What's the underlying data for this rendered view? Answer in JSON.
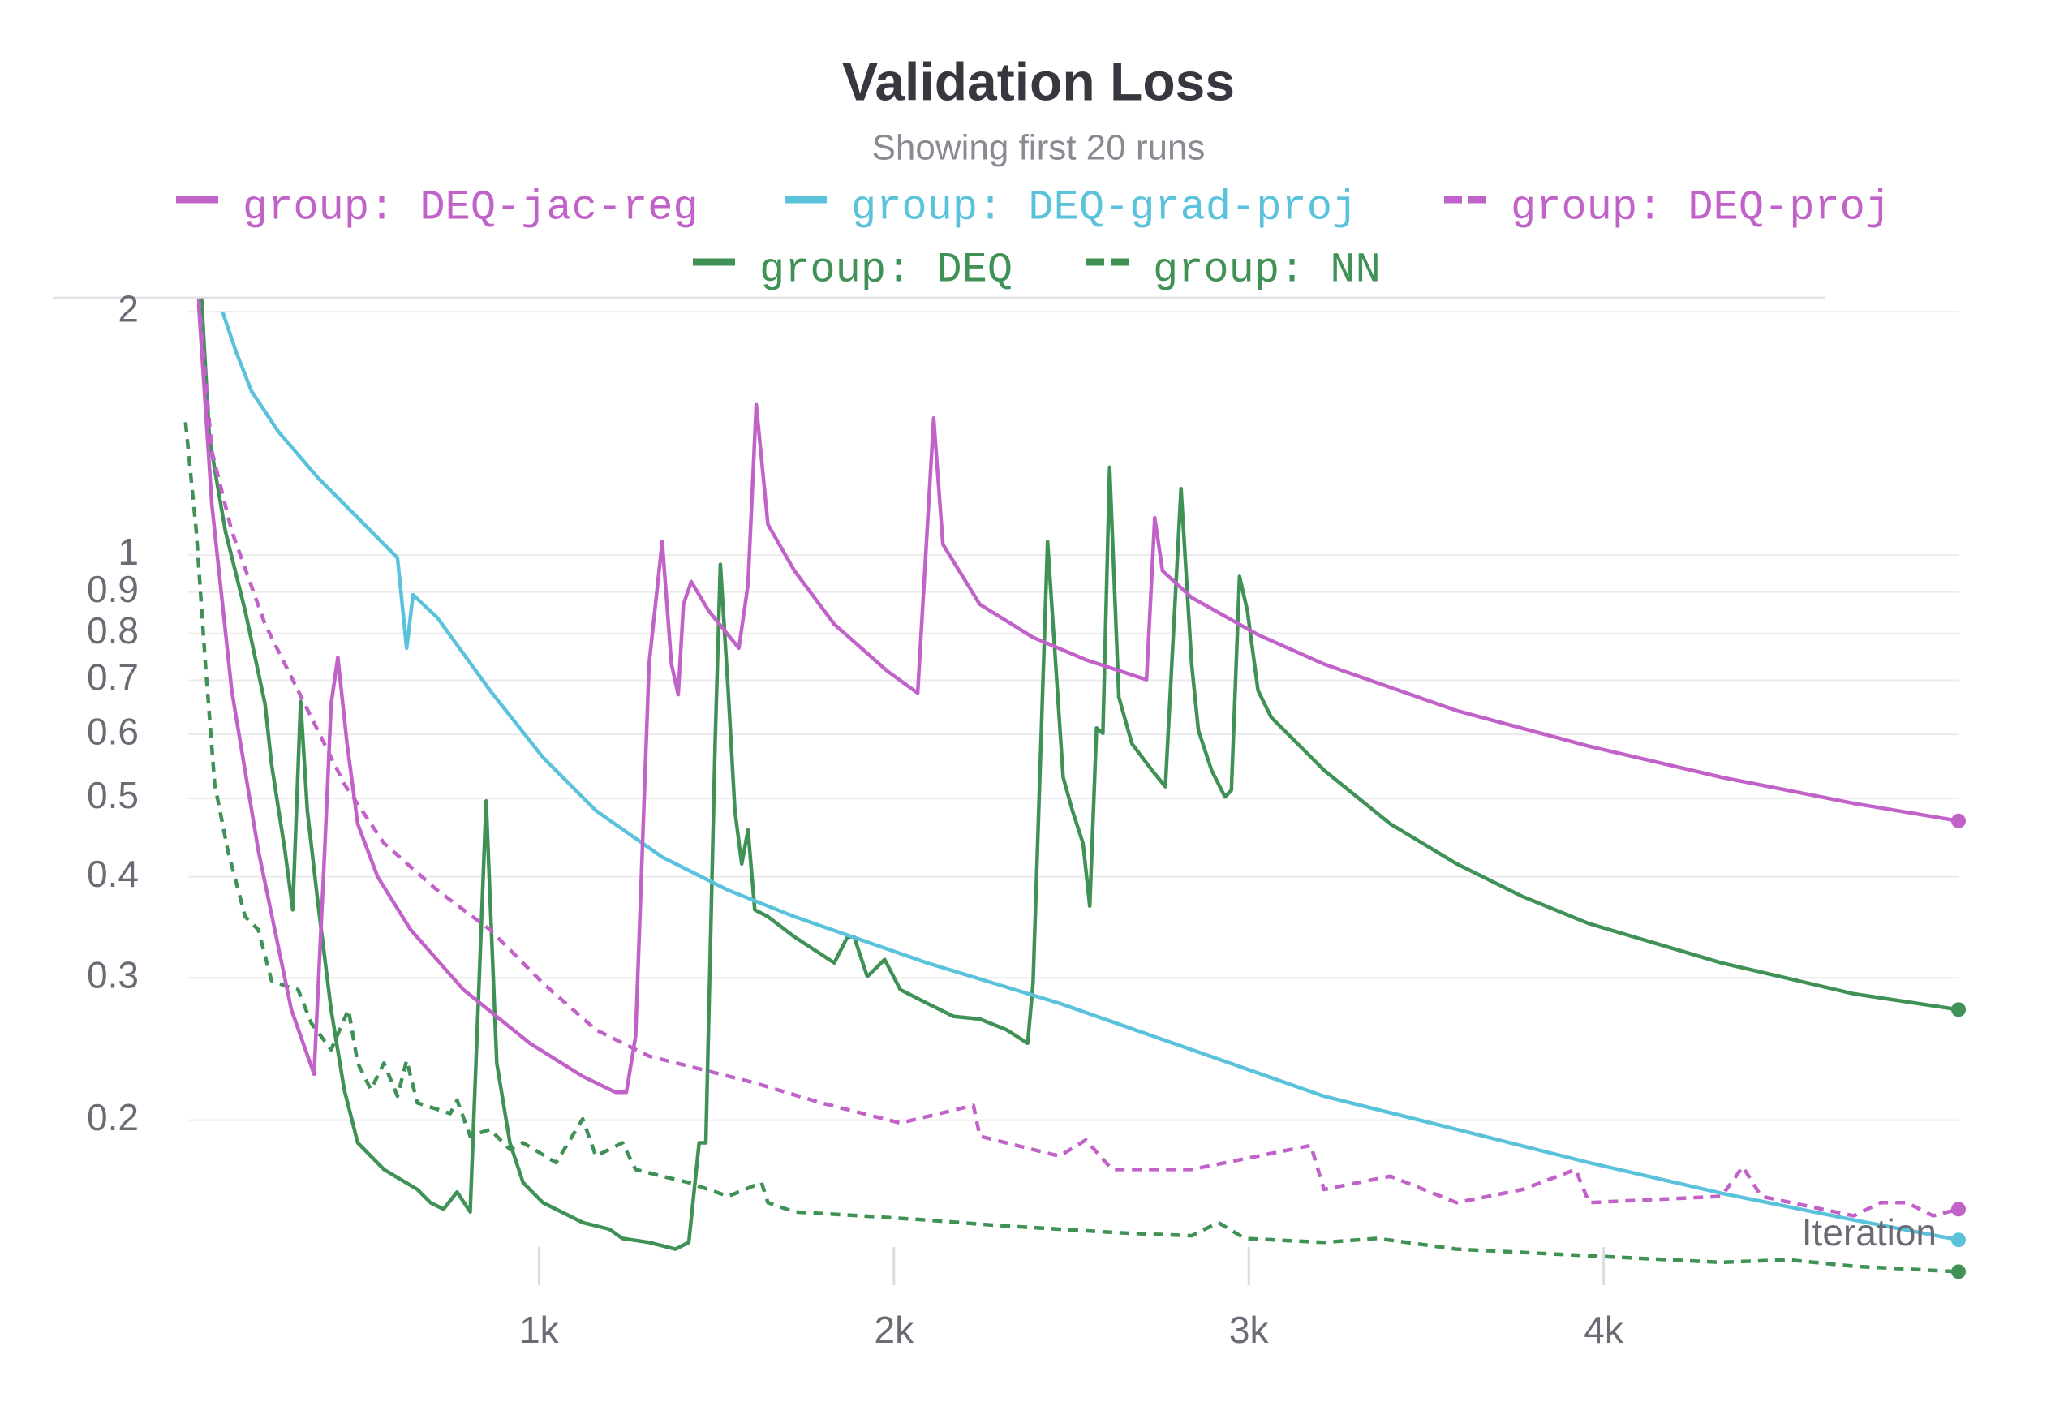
{
  "chart_data": {
    "type": "line",
    "title": "Validation Loss",
    "subtitle": "Showing first 20 runs",
    "x_label": "Iteration",
    "yscale": "log",
    "grid": true,
    "legend_position": "top",
    "xlim": [
      0,
      5000
    ],
    "ylim": [
      0.125,
      2.1
    ],
    "xticks": [
      {
        "value": 1000,
        "label": "1k"
      },
      {
        "value": 2000,
        "label": "2k"
      },
      {
        "value": 3000,
        "label": "3k"
      },
      {
        "value": 4000,
        "label": "4k"
      }
    ],
    "yticks": [
      0.2,
      0.3,
      0.4,
      0.5,
      0.6,
      0.7,
      0.8,
      0.9,
      1,
      2
    ],
    "series": [
      {
        "name": "group: DEQ-jac-reg",
        "color": "#c062c8",
        "dash": false,
        "x": [
          41,
          78,
          134,
          209,
          302,
          366,
          396,
          414,
          433,
          459,
          489,
          545,
          638,
          787,
          974,
          1123,
          1216,
          1246,
          1272,
          1310,
          1347,
          1373,
          1392,
          1407,
          1429,
          1478,
          1563,
          1589,
          1612,
          1645,
          1720,
          1832,
          1981,
          2067,
          2112,
          2138,
          2242,
          2392,
          2541,
          2712,
          2735,
          2757,
          2839,
          3026,
          3212,
          3586,
          3959,
          4332,
          4705,
          5000
        ],
        "values": [
          2.04,
          1.155,
          0.68,
          0.431,
          0.274,
          0.228,
          0.431,
          0.654,
          0.747,
          0.584,
          0.465,
          0.4,
          0.344,
          0.29,
          0.249,
          0.2266,
          0.2165,
          0.2165,
          0.254,
          0.733,
          1.039,
          0.733,
          0.672,
          0.869,
          0.927,
          0.853,
          0.767,
          0.92,
          1.534,
          1.091,
          0.956,
          0.821,
          0.719,
          0.675,
          1.477,
          1.031,
          0.869,
          0.791,
          0.742,
          0.701,
          1.112,
          0.956,
          0.886,
          0.797,
          0.733,
          0.642,
          0.58,
          0.531,
          0.493,
          0.469
        ]
      },
      {
        "name": "group: DEQ-grad-proj",
        "color": "#5bc2dc",
        "dash": false,
        "x": [
          108,
          146,
          190,
          265,
          377,
          489,
          601,
          608,
          627,
          645,
          713,
          862,
          1011,
          1160,
          1347,
          1533,
          1720,
          2093,
          2466,
          2839,
          3212,
          3586,
          3959,
          4332,
          4705,
          5000
        ],
        "values": [
          2.0,
          1.785,
          1.594,
          1.422,
          1.246,
          1.112,
          0.992,
          0.927,
          0.767,
          0.893,
          0.837,
          0.68,
          0.562,
          0.483,
          0.423,
          0.385,
          0.357,
          0.313,
          0.279,
          0.2444,
          0.2141,
          0.1948,
          0.1772,
          0.1624,
          0.1505,
          0.1422
        ]
      },
      {
        "name": "group: DEQ-proj",
        "color": "#c062c8",
        "dash": true,
        "x": [
          41,
          78,
          134,
          228,
          340,
          451,
          563,
          713,
          862,
          1011,
          1160,
          1310,
          1459,
          1608,
          1795,
          2018,
          2224,
          2242,
          2466,
          2541,
          2615,
          2839,
          3175,
          3212,
          3399,
          3586,
          3772,
          3921,
          3959,
          4332,
          4392,
          4444,
          4705,
          4780,
          4854,
          4929,
          5000
        ],
        "values": [
          2.077,
          1.344,
          1.071,
          0.821,
          0.654,
          0.521,
          0.44,
          0.385,
          0.344,
          0.2954,
          0.2587,
          0.24,
          0.231,
          0.2224,
          0.2101,
          0.1984,
          0.2086,
          0.1911,
          0.1805,
          0.189,
          0.1738,
          0.1738,
          0.1861,
          0.1642,
          0.1705,
          0.1581,
          0.1642,
          0.1738,
          0.1581,
          0.161,
          0.1751,
          0.161,
          0.1523,
          0.1581,
          0.1581,
          0.1523,
          0.1552
        ]
      },
      {
        "name": "group: DEQ",
        "color": "#3f9156",
        "dash": false,
        "x": [
          49,
          71,
          116,
          172,
          228,
          246,
          284,
          306,
          328,
          347,
          377,
          414,
          451,
          489,
          563,
          657,
          694,
          731,
          769,
          806,
          851,
          881,
          918,
          955,
          1011,
          1123,
          1198,
          1235,
          1310,
          1384,
          1422,
          1451,
          1470,
          1496,
          1511,
          1533,
          1552,
          1571,
          1589,
          1608,
          1645,
          1720,
          1832,
          1869,
          1888,
          1925,
          1974,
          2018,
          2093,
          2168,
          2242,
          2317,
          2377,
          2392,
          2433,
          2477,
          2503,
          2533,
          2552,
          2571,
          2589,
          2608,
          2634,
          2671,
          2727,
          2765,
          2809,
          2839,
          2858,
          2895,
          2933,
          2951,
          2974,
          2996,
          3026,
          3063,
          3212,
          3399,
          3586,
          3772,
          3959,
          4332,
          4705,
          5000
        ],
        "values": [
          2.077,
          1.396,
          1.071,
          0.853,
          0.654,
          0.552,
          0.431,
          0.364,
          0.659,
          0.483,
          0.371,
          0.274,
          0.2182,
          0.1875,
          0.1738,
          0.1642,
          0.1581,
          0.1552,
          0.163,
          0.154,
          0.4963,
          0.2353,
          0.1875,
          0.1674,
          0.1581,
          0.1494,
          0.1466,
          0.1428,
          0.1412,
          0.1385,
          0.1412,
          0.1875,
          0.1875,
          0.584,
          0.974,
          0.68,
          0.483,
          0.415,
          0.457,
          0.364,
          0.357,
          0.337,
          0.313,
          0.337,
          0.337,
          0.301,
          0.316,
          0.29,
          0.279,
          0.2688,
          0.2667,
          0.2587,
          0.249,
          0.2954,
          1.039,
          0.531,
          0.483,
          0.44,
          0.368,
          0.611,
          0.602,
          1.284,
          0.667,
          0.584,
          0.542,
          0.517,
          1.208,
          0.733,
          0.607,
          0.542,
          0.502,
          0.512,
          0.941,
          0.853,
          0.68,
          0.63,
          0.542,
          0.465,
          0.415,
          0.378,
          0.35,
          0.313,
          0.2866,
          0.274
        ]
      },
      {
        "name": "group: NN",
        "color": "#3f9156",
        "dash": true,
        "x": [
          4,
          34,
          60,
          86,
          123,
          172,
          209,
          246,
          284,
          321,
          358,
          414,
          463,
          489,
          526,
          563,
          601,
          627,
          657,
          750,
          769,
          806,
          862,
          918,
          955,
          1048,
          1123,
          1160,
          1235,
          1272,
          1347,
          1422,
          1533,
          1627,
          1645,
          1720,
          1907,
          2093,
          2280,
          2466,
          2653,
          2839,
          2914,
          2989,
          3212,
          3362,
          3586,
          3959,
          4332,
          4518,
          4705,
          5000
        ],
        "values": [
          1.46,
          1.071,
          0.733,
          0.521,
          0.431,
          0.357,
          0.344,
          0.2977,
          0.2932,
          0.29,
          0.2637,
          0.2444,
          0.274,
          0.2353,
          0.2182,
          0.2353,
          0.2141,
          0.2371,
          0.2101,
          0.2038,
          0.2117,
          0.1911,
          0.1948,
          0.184,
          0.1875,
          0.1772,
          0.2007,
          0.1805,
          0.1875,
          0.1738,
          0.1705,
          0.1674,
          0.161,
          0.1674,
          0.1581,
          0.154,
          0.1523,
          0.1505,
          0.1483,
          0.1466,
          0.145,
          0.1439,
          0.1494,
          0.1428,
          0.1412,
          0.1428,
          0.1385,
          0.1359,
          0.1334,
          0.1344,
          0.1319,
          0.1299
        ]
      }
    ]
  }
}
